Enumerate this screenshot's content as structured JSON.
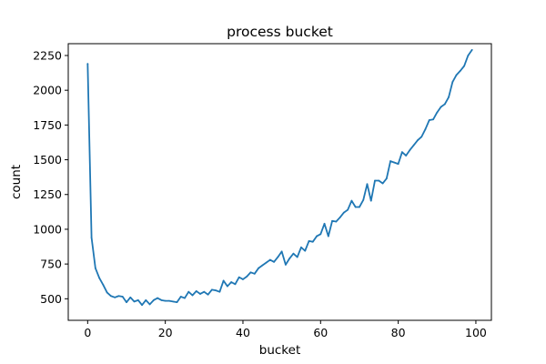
{
  "chart_data": {
    "type": "line",
    "title": "process bucket",
    "xlabel": "bucket",
    "ylabel": "count",
    "xlim": [
      -5,
      104
    ],
    "ylim": [
      345,
      2335
    ],
    "xticks": [
      0,
      20,
      40,
      60,
      80,
      100
    ],
    "yticks": [
      500,
      750,
      1000,
      1250,
      1500,
      1750,
      2000,
      2250
    ],
    "grid": false,
    "legend": "none",
    "series": [
      {
        "color": "#1f77b4",
        "x": [
          0,
          1,
          2,
          3,
          4,
          5,
          6,
          7,
          8,
          9,
          10,
          11,
          12,
          13,
          14,
          15,
          16,
          17,
          18,
          19,
          20,
          21,
          22,
          23,
          24,
          25,
          26,
          27,
          28,
          29,
          30,
          31,
          32,
          33,
          34,
          35,
          36,
          37,
          38,
          39,
          40,
          41,
          42,
          43,
          44,
          45,
          46,
          47,
          48,
          49,
          50,
          51,
          52,
          53,
          54,
          55,
          56,
          57,
          58,
          59,
          60,
          61,
          62,
          63,
          64,
          65,
          66,
          67,
          68,
          69,
          70,
          71,
          72,
          73,
          74,
          75,
          76,
          77,
          78,
          79,
          80,
          81,
          82,
          83,
          84,
          85,
          86,
          87,
          88,
          89,
          90,
          91,
          92,
          93,
          94,
          95,
          96,
          97,
          98,
          99
        ],
        "values": [
          2190,
          940,
          720,
          650,
          600,
          545,
          520,
          510,
          520,
          515,
          475,
          510,
          480,
          490,
          455,
          490,
          460,
          490,
          505,
          490,
          485,
          485,
          480,
          475,
          515,
          505,
          550,
          525,
          555,
          535,
          550,
          530,
          565,
          560,
          550,
          630,
          590,
          620,
          605,
          655,
          640,
          660,
          690,
          680,
          720,
          740,
          760,
          780,
          765,
          800,
          840,
          745,
          790,
          825,
          800,
          870,
          845,
          915,
          910,
          950,
          965,
          1040,
          950,
          1060,
          1055,
          1085,
          1120,
          1140,
          1205,
          1160,
          1160,
          1210,
          1325,
          1205,
          1350,
          1350,
          1330,
          1365,
          1490,
          1480,
          1470,
          1555,
          1530,
          1570,
          1605,
          1640,
          1665,
          1720,
          1785,
          1790,
          1840,
          1880,
          1900,
          1950,
          2060,
          2110,
          2140,
          2175,
          2250,
          2290
        ]
      }
    ]
  }
}
